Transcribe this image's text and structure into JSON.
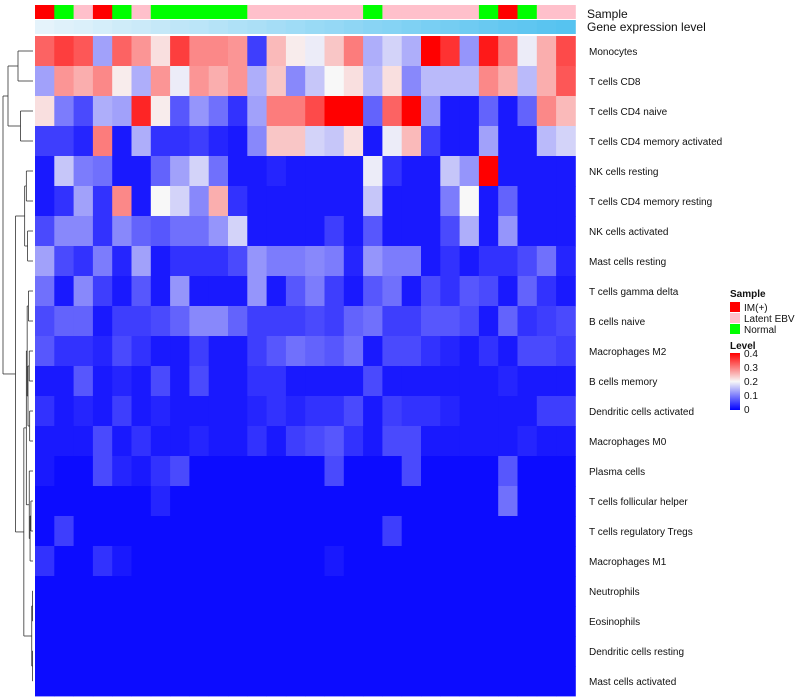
{
  "chart_data": {
    "type": "heatmap",
    "title": "",
    "annotation_tracks": [
      {
        "name": "Sample",
        "values": [
          "IM(+)",
          "Normal",
          "Latent EBV",
          "IM(+)",
          "Normal",
          "Latent EBV",
          "Normal",
          "Normal",
          "Normal",
          "Normal",
          "Normal",
          "Latent EBV",
          "Latent EBV",
          "Latent EBV",
          "Latent EBV",
          "Latent EBV",
          "Latent EBV",
          "Normal",
          "Latent EBV",
          "Latent EBV",
          "Latent EBV",
          "Latent EBV",
          "Latent EBV",
          "Normal",
          "IM(+)",
          "Normal",
          "Latent EBV",
          "Latent EBV"
        ]
      },
      {
        "name": "Gene expression level",
        "values": [
          0.02,
          0.06,
          0.09,
          0.13,
          0.17,
          0.2,
          0.24,
          0.28,
          0.31,
          0.35,
          0.39,
          0.42,
          0.46,
          0.5,
          0.54,
          0.57,
          0.61,
          0.65,
          0.68,
          0.72,
          0.76,
          0.79,
          0.83,
          0.87,
          0.91,
          0.94,
          0.97,
          1.0
        ]
      }
    ],
    "rows": [
      "Monocytes",
      "T cells CD8",
      "T cells CD4 naive",
      "T cells CD4 memory activated",
      "NK cells resting",
      "T cells CD4 memory resting",
      "NK cells activated",
      "Mast cells resting",
      "T cells gamma delta",
      "B cells naive",
      "Macrophages M2",
      "B cells memory",
      "Dendritic cells activated",
      "Macrophages M0",
      "Plasma cells",
      "T cells follicular helper",
      "T cells regulatory  Tregs",
      "Macrophages M1",
      "Neutrophils",
      "Eosinophils",
      "Dendritic cells resting",
      "Mast cells activated"
    ],
    "values": [
      [
        0.32,
        0.35,
        0.33,
        0.13,
        0.32,
        0.28,
        0.22,
        0.35,
        0.29,
        0.29,
        0.28,
        0.05,
        0.25,
        0.21,
        0.19,
        0.24,
        0.3,
        0.14,
        0.17,
        0.14,
        0.4,
        0.36,
        0.12,
        0.38,
        0.3,
        0.19,
        0.26,
        0.34
      ],
      [
        0.13,
        0.28,
        0.26,
        0.29,
        0.21,
        0.14,
        0.28,
        0.19,
        0.28,
        0.26,
        0.28,
        0.14,
        0.24,
        0.11,
        0.16,
        0.2,
        0.22,
        0.15,
        0.22,
        0.11,
        0.15,
        0.15,
        0.15,
        0.29,
        0.26,
        0.15,
        0.26,
        0.33
      ],
      [
        0.22,
        0.1,
        0.06,
        0.14,
        0.13,
        0.37,
        0.21,
        0.07,
        0.12,
        0.09,
        0.04,
        0.13,
        0.3,
        0.3,
        0.34,
        0.4,
        0.4,
        0.08,
        0.32,
        0.4,
        0.12,
        0.02,
        0.02,
        0.08,
        0.02,
        0.08,
        0.29,
        0.25
      ],
      [
        0.05,
        0.05,
        0.03,
        0.3,
        0.02,
        0.14,
        0.04,
        0.04,
        0.05,
        0.03,
        0.02,
        0.11,
        0.24,
        0.24,
        0.17,
        0.16,
        0.22,
        0.02,
        0.19,
        0.25,
        0.05,
        0.02,
        0.02,
        0.13,
        0.02,
        0.02,
        0.15,
        0.17
      ],
      [
        0.02,
        0.16,
        0.1,
        0.09,
        0.02,
        0.02,
        0.08,
        0.13,
        0.17,
        0.09,
        0.02,
        0.02,
        0.03,
        0.02,
        0.02,
        0.02,
        0.02,
        0.19,
        0.04,
        0.02,
        0.02,
        0.16,
        0.12,
        0.4,
        0.02,
        0.02,
        0.02,
        0.02
      ],
      [
        0.02,
        0.04,
        0.13,
        0.04,
        0.29,
        0.02,
        0.2,
        0.17,
        0.11,
        0.26,
        0.04,
        0.02,
        0.02,
        0.02,
        0.02,
        0.02,
        0.02,
        0.16,
        0.02,
        0.02,
        0.02,
        0.1,
        0.2,
        0.02,
        0.08,
        0.02,
        0.02,
        0.02
      ],
      [
        0.06,
        0.11,
        0.11,
        0.04,
        0.11,
        0.08,
        0.07,
        0.09,
        0.09,
        0.12,
        0.17,
        0.02,
        0.02,
        0.02,
        0.02,
        0.05,
        0.02,
        0.07,
        0.02,
        0.02,
        0.02,
        0.06,
        0.14,
        0.02,
        0.12,
        0.02,
        0.02,
        0.02
      ],
      [
        0.13,
        0.06,
        0.04,
        0.1,
        0.03,
        0.13,
        0.02,
        0.04,
        0.04,
        0.04,
        0.06,
        0.12,
        0.1,
        0.1,
        0.11,
        0.1,
        0.03,
        0.12,
        0.1,
        0.1,
        0.02,
        0.04,
        0.02,
        0.04,
        0.04,
        0.06,
        0.09,
        0.03
      ],
      [
        0.09,
        0.02,
        0.11,
        0.05,
        0.02,
        0.07,
        0.02,
        0.12,
        0.02,
        0.02,
        0.02,
        0.12,
        0.02,
        0.07,
        0.1,
        0.05,
        0.02,
        0.07,
        0.09,
        0.02,
        0.06,
        0.04,
        0.07,
        0.06,
        0.02,
        0.08,
        0.04,
        0.02
      ],
      [
        0.06,
        0.08,
        0.08,
        0.02,
        0.05,
        0.05,
        0.06,
        0.08,
        0.11,
        0.11,
        0.08,
        0.05,
        0.05,
        0.05,
        0.06,
        0.05,
        0.08,
        0.09,
        0.05,
        0.05,
        0.07,
        0.07,
        0.06,
        0.02,
        0.08,
        0.04,
        0.05,
        0.06
      ],
      [
        0.07,
        0.04,
        0.04,
        0.03,
        0.06,
        0.04,
        0.02,
        0.02,
        0.05,
        0.02,
        0.02,
        0.05,
        0.07,
        0.09,
        0.08,
        0.07,
        0.09,
        0.02,
        0.06,
        0.06,
        0.04,
        0.03,
        0.02,
        0.04,
        0.02,
        0.06,
        0.06,
        0.05
      ],
      [
        0.02,
        0.02,
        0.07,
        0.02,
        0.03,
        0.02,
        0.06,
        0.02,
        0.06,
        0.02,
        0.02,
        0.04,
        0.04,
        0.02,
        0.02,
        0.02,
        0.02,
        0.06,
        0.02,
        0.02,
        0.02,
        0.02,
        0.02,
        0.02,
        0.03,
        0.02,
        0.02,
        0.02
      ],
      [
        0.04,
        0.02,
        0.03,
        0.02,
        0.05,
        0.02,
        0.03,
        0.02,
        0.02,
        0.02,
        0.02,
        0.03,
        0.04,
        0.03,
        0.04,
        0.04,
        0.06,
        0.02,
        0.05,
        0.04,
        0.04,
        0.03,
        0.02,
        0.02,
        0.02,
        0.02,
        0.05,
        0.05
      ],
      [
        0.02,
        0.02,
        0.02,
        0.06,
        0.02,
        0.04,
        0.02,
        0.02,
        0.03,
        0.02,
        0.02,
        0.04,
        0.02,
        0.05,
        0.06,
        0.07,
        0.04,
        0.02,
        0.06,
        0.06,
        0.02,
        0.02,
        0.02,
        0.02,
        0.02,
        0.03,
        0.02,
        0.02
      ],
      [
        0.02,
        0.01,
        0.01,
        0.06,
        0.03,
        0.02,
        0.04,
        0.06,
        0.01,
        0.01,
        0.01,
        0.01,
        0.01,
        0.01,
        0.01,
        0.06,
        0.01,
        0.01,
        0.01,
        0.06,
        0.01,
        0.01,
        0.01,
        0.01,
        0.07,
        0.01,
        0.01,
        0.01
      ],
      [
        0.01,
        0.01,
        0.01,
        0.01,
        0.01,
        0.01,
        0.03,
        0.01,
        0.01,
        0.01,
        0.01,
        0.01,
        0.01,
        0.01,
        0.01,
        0.01,
        0.01,
        0.01,
        0.01,
        0.01,
        0.01,
        0.01,
        0.01,
        0.01,
        0.09,
        0.01,
        0.01,
        0.01
      ],
      [
        0.01,
        0.05,
        0.01,
        0.01,
        0.01,
        0.01,
        0.01,
        0.01,
        0.01,
        0.01,
        0.01,
        0.01,
        0.01,
        0.01,
        0.01,
        0.01,
        0.01,
        0.01,
        0.05,
        0.01,
        0.01,
        0.01,
        0.01,
        0.01,
        0.01,
        0.01,
        0.01,
        0.01
      ],
      [
        0.04,
        0.01,
        0.01,
        0.04,
        0.02,
        0.01,
        0.01,
        0.01,
        0.01,
        0.01,
        0.01,
        0.01,
        0.01,
        0.01,
        0.01,
        0.02,
        0.01,
        0.01,
        0.01,
        0.01,
        0.01,
        0.01,
        0.01,
        0.01,
        0.01,
        0.01,
        0.01,
        0.01
      ],
      [
        0.01,
        0.01,
        0.01,
        0.01,
        0.01,
        0.01,
        0.01,
        0.01,
        0.01,
        0.01,
        0.01,
        0.01,
        0.01,
        0.01,
        0.01,
        0.01,
        0.01,
        0.01,
        0.01,
        0.01,
        0.01,
        0.01,
        0.01,
        0.01,
        0.01,
        0.01,
        0.01,
        0.01
      ],
      [
        0.01,
        0.01,
        0.01,
        0.01,
        0.01,
        0.01,
        0.01,
        0.01,
        0.01,
        0.01,
        0.01,
        0.01,
        0.01,
        0.01,
        0.01,
        0.01,
        0.01,
        0.01,
        0.01,
        0.01,
        0.01,
        0.01,
        0.01,
        0.01,
        0.01,
        0.01,
        0.01,
        0.01
      ],
      [
        0.01,
        0.01,
        0.01,
        0.01,
        0.01,
        0.01,
        0.01,
        0.01,
        0.01,
        0.01,
        0.01,
        0.01,
        0.01,
        0.01,
        0.01,
        0.01,
        0.01,
        0.01,
        0.01,
        0.01,
        0.01,
        0.01,
        0.01,
        0.01,
        0.01,
        0.01,
        0.01,
        0.01
      ],
      [
        0.01,
        0.01,
        0.01,
        0.01,
        0.01,
        0.01,
        0.01,
        0.01,
        0.01,
        0.01,
        0.01,
        0.01,
        0.01,
        0.01,
        0.01,
        0.01,
        0.01,
        0.01,
        0.01,
        0.01,
        0.01,
        0.01,
        0.01,
        0.01,
        0.01,
        0.01,
        0.01,
        0.01
      ]
    ],
    "dendrogram": {
      "merges": [
        [
          18,
          19,
          0.01
        ],
        [
          20,
          21,
          0.01
        ],
        [
          -1,
          -2,
          0.03
        ],
        [
          15,
          16,
          0.05
        ],
        [
          -4,
          17,
          0.07
        ],
        [
          14,
          -5,
          0.09
        ],
        [
          12,
          13,
          0.08
        ],
        [
          10,
          11,
          0.09
        ],
        [
          -7,
          -8,
          0.12
        ],
        [
          8,
          9,
          0.11
        ],
        [
          -10,
          -9,
          0.14
        ],
        [
          -11,
          -6,
          0.16
        ],
        [
          6,
          7,
          0.13
        ],
        [
          4,
          5,
          0.16
        ],
        [
          -13,
          -14,
          0.2
        ],
        [
          -12,
          -3,
          0.22
        ],
        [
          2,
          3,
          0.3
        ],
        [
          0,
          1,
          0.36
        ],
        [
          -15,
          -16,
          0.42
        ],
        [
          -18,
          -17,
          0.6
        ],
        [
          -19,
          -20,
          0.72
        ]
      ]
    },
    "legend": {
      "sample": {
        "title": "Sample",
        "entries": [
          {
            "label": "IM(+)",
            "color": "#ff0000"
          },
          {
            "label": "Latent EBV",
            "color": "#ffc0cb"
          },
          {
            "label": "Normal",
            "color": "#00ff00"
          }
        ]
      },
      "level": {
        "title": "Level",
        "min": 0,
        "max": 0.4,
        "ticks": [
          0.4,
          0.3,
          0.2,
          0.1,
          0
        ],
        "tick_labels": [
          "0.4",
          "0.3",
          "0.2",
          "0.1",
          "0"
        ]
      }
    }
  },
  "colors": {
    "low": "#0000ff",
    "mid": "#f8f8f8",
    "high": "#ff0000",
    "im": "#ff0000",
    "latent": "#ffc0cb",
    "normal": "#00ff00",
    "gene_low": "#e8f4fb",
    "gene_high": "#56c3f0"
  }
}
